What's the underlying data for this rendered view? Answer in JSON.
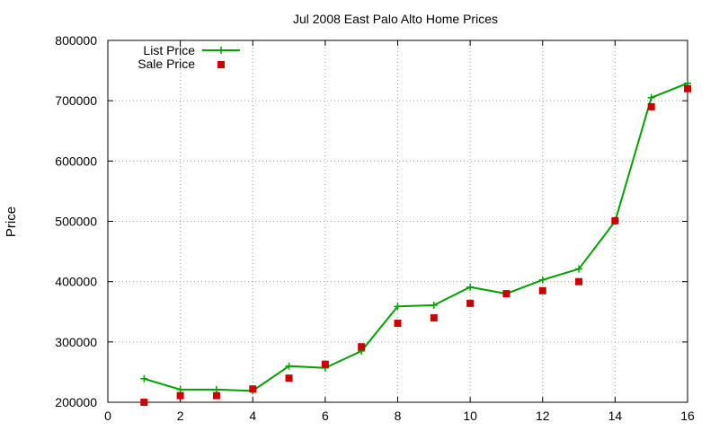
{
  "chart_data": {
    "type": "line",
    "title": "Jul 2008 East Palo Alto Home Prices",
    "xlabel": "",
    "ylabel": "Price",
    "xlim": [
      0,
      16
    ],
    "ylim": [
      200000,
      800000
    ],
    "x_ticks": [
      0,
      2,
      4,
      6,
      8,
      10,
      12,
      14,
      16
    ],
    "y_ticks": [
      200000,
      300000,
      400000,
      500000,
      600000,
      700000,
      800000
    ],
    "x_tick_labels": [
      "0",
      "2",
      "4",
      "6",
      "8",
      "10",
      "12",
      "14",
      "16"
    ],
    "y_tick_labels": [
      "200000",
      "300000",
      "400000",
      "500000",
      "600000",
      "700000",
      "800000"
    ],
    "grid": true,
    "legend_position": "top-left",
    "series": [
      {
        "name": "List Price",
        "style": "line-with-plus-markers",
        "color": "#00a000",
        "x": [
          1,
          2,
          3,
          4,
          5,
          6,
          7,
          8,
          9,
          10,
          11,
          12,
          13,
          14,
          15,
          16
        ],
        "values": [
          239000,
          221000,
          221000,
          219000,
          260000,
          257000,
          285000,
          359000,
          361000,
          391000,
          380000,
          403000,
          421000,
          500000,
          705000,
          729000
        ]
      },
      {
        "name": "Sale Price",
        "style": "square-points",
        "color": "#cc0000",
        "x": [
          1,
          2,
          3,
          4,
          5,
          6,
          7,
          8,
          9,
          10,
          11,
          12,
          13,
          14,
          15,
          16
        ],
        "values": [
          200000,
          211000,
          211000,
          222000,
          240000,
          263000,
          292000,
          331000,
          340000,
          364000,
          380000,
          385000,
          400000,
          501000,
          690000,
          720000
        ]
      }
    ]
  }
}
